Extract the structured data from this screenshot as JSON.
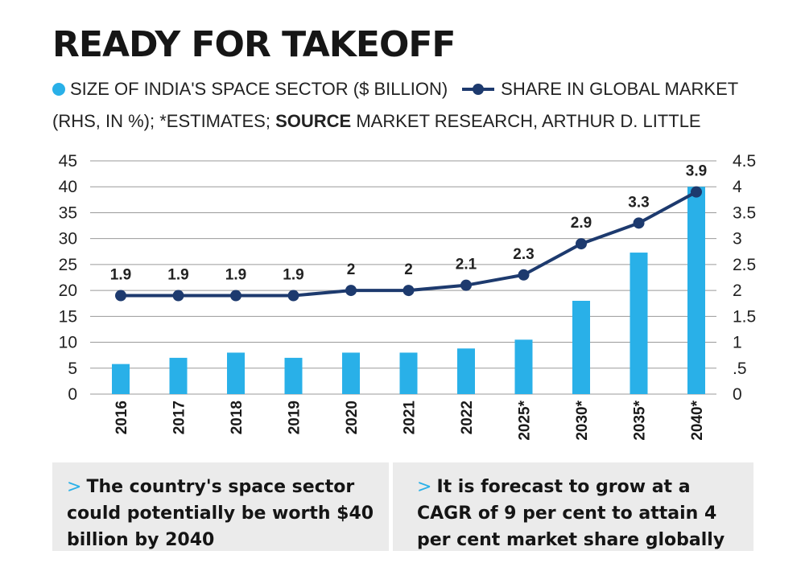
{
  "title": "READY FOR TAKEOFF",
  "legend": {
    "bar_label": "SIZE OF INDIA'S SPACE SECTOR ($ BILLION)",
    "line_label": "SHARE IN GLOBAL MARKET",
    "note": "(RHS, IN %); *ESTIMATES;",
    "source_label": "SOURCE",
    "source_text": "MARKET RESEARCH, ARTHUR D. LITTLE"
  },
  "colors": {
    "bar": "#29b0e8",
    "line": "#1d3a6e",
    "grid": "#9a9a9a",
    "panel": "#ebebeb"
  },
  "chart_data": {
    "type": "bar+line",
    "categories": [
      "2016",
      "2017",
      "2018",
      "2019",
      "2020",
      "2021",
      "2022",
      "2025*",
      "2030*",
      "2035*",
      "2040*"
    ],
    "series": [
      {
        "values": [
          5.8,
          7,
          8,
          7,
          8,
          8,
          8.8,
          10.5,
          18,
          27.3,
          40
        ],
        "axis": "left",
        "type": "bar"
      },
      {
        "values": [
          1.9,
          1.9,
          1.9,
          1.9,
          2,
          2,
          2.1,
          2.3,
          2.9,
          3.3,
          3.9
        ],
        "axis": "right",
        "type": "line"
      }
    ],
    "line_labels": [
      "1.9",
      "1.9",
      "1.9",
      "1.9",
      "2",
      "2",
      "2.1",
      "2.3",
      "2.9",
      "3.3",
      "3.9"
    ],
    "y_left": {
      "range": [
        0,
        45
      ],
      "ticks": [
        "0",
        "5",
        "10",
        "15",
        "20",
        "25",
        "30",
        "35",
        "40",
        "45"
      ]
    },
    "y_right": {
      "range": [
        0,
        4.5
      ],
      "ticks": [
        "0",
        ".5",
        "1",
        "1.5",
        "2",
        "2.5",
        "3",
        "3.5",
        "4",
        "4.5"
      ]
    },
    "grid": true
  },
  "panels": {
    "left": {
      "chevron": ">",
      "text": "The country's space sector could potentially be worth $40 billion by 2040"
    },
    "right": {
      "chevron": ">",
      "text": "It is forecast to grow at a CAGR of 9 per cent to attain 4 per cent market share globally"
    }
  }
}
